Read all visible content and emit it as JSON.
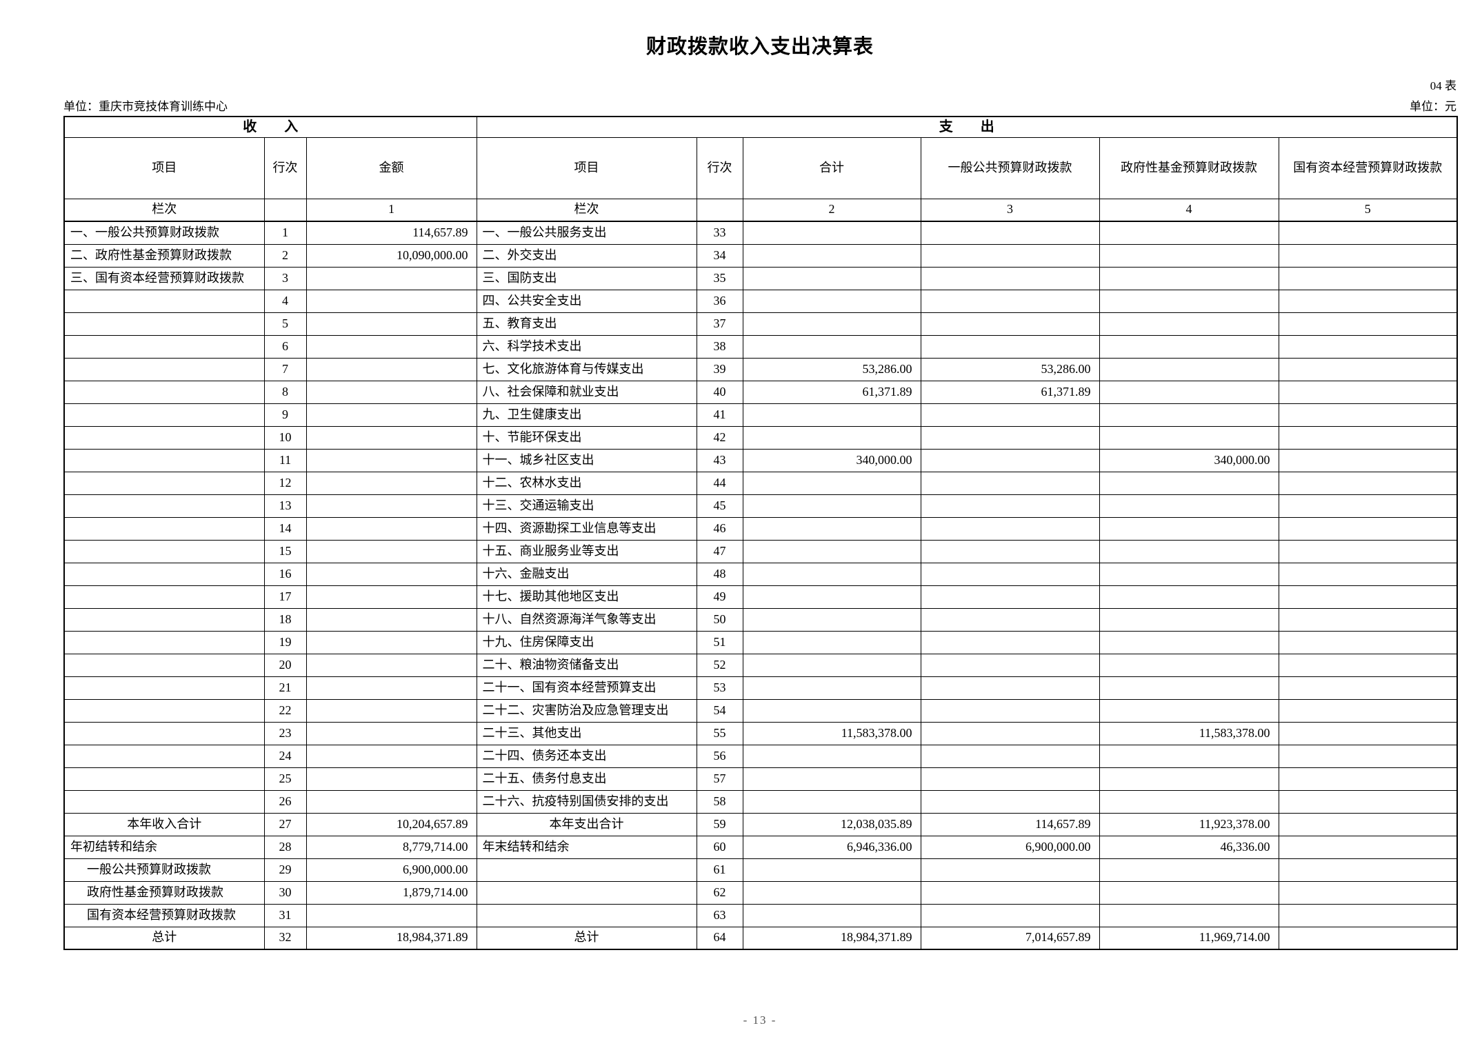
{
  "page": {
    "title": "财政拨款收入支出决算表",
    "table_no": "04 表",
    "unit_name": "单位：重庆市竞技体育训练中心",
    "unit_yuan": "单位：元",
    "page_number": "- 13 -"
  },
  "table": {
    "income_band": "收　　入",
    "expense_band": "支　　出",
    "headers": {
      "item": "项目",
      "row_no": "行次",
      "amount": "金额",
      "total": "合计",
      "general_budget": "一般公共预算财政拨款",
      "gov_fund": "政府性基金预算财政拨款",
      "state_capital": "国有资本经营预算财政拨款"
    },
    "col_index": {
      "label": "栏次",
      "cols": [
        "1",
        "2",
        "3",
        "4",
        "5"
      ]
    },
    "rows": [
      {
        "income_item": "一、一般公共预算财政拨款",
        "income_row": "1",
        "income_amount": "114,657.89",
        "expense_item": "一、一般公共服务支出",
        "expense_row": "33",
        "expense_total": "",
        "expense_general": "",
        "expense_govfund": "",
        "expense_statecap": ""
      },
      {
        "income_item": "二、政府性基金预算财政拨款",
        "income_row": "2",
        "income_amount": "10,090,000.00",
        "expense_item": "二、外交支出",
        "expense_row": "34",
        "expense_total": "",
        "expense_general": "",
        "expense_govfund": "",
        "expense_statecap": ""
      },
      {
        "income_item": "三、国有资本经营预算财政拨款",
        "income_row": "3",
        "income_amount": "",
        "expense_item": "三、国防支出",
        "expense_row": "35",
        "expense_total": "",
        "expense_general": "",
        "expense_govfund": "",
        "expense_statecap": ""
      },
      {
        "income_item": "",
        "income_row": "4",
        "income_amount": "",
        "expense_item": "四、公共安全支出",
        "expense_row": "36",
        "expense_total": "",
        "expense_general": "",
        "expense_govfund": "",
        "expense_statecap": ""
      },
      {
        "income_item": "",
        "income_row": "5",
        "income_amount": "",
        "expense_item": "五、教育支出",
        "expense_row": "37",
        "expense_total": "",
        "expense_general": "",
        "expense_govfund": "",
        "expense_statecap": ""
      },
      {
        "income_item": "",
        "income_row": "6",
        "income_amount": "",
        "expense_item": "六、科学技术支出",
        "expense_row": "38",
        "expense_total": "",
        "expense_general": "",
        "expense_govfund": "",
        "expense_statecap": ""
      },
      {
        "income_item": "",
        "income_row": "7",
        "income_amount": "",
        "expense_item": "七、文化旅游体育与传媒支出",
        "expense_row": "39",
        "expense_total": "53,286.00",
        "expense_general": "53,286.00",
        "expense_govfund": "",
        "expense_statecap": ""
      },
      {
        "income_item": "",
        "income_row": "8",
        "income_amount": "",
        "expense_item": "八、社会保障和就业支出",
        "expense_row": "40",
        "expense_total": "61,371.89",
        "expense_general": "61,371.89",
        "expense_govfund": "",
        "expense_statecap": ""
      },
      {
        "income_item": "",
        "income_row": "9",
        "income_amount": "",
        "expense_item": "九、卫生健康支出",
        "expense_row": "41",
        "expense_total": "",
        "expense_general": "",
        "expense_govfund": "",
        "expense_statecap": ""
      },
      {
        "income_item": "",
        "income_row": "10",
        "income_amount": "",
        "expense_item": "十、节能环保支出",
        "expense_row": "42",
        "expense_total": "",
        "expense_general": "",
        "expense_govfund": "",
        "expense_statecap": ""
      },
      {
        "income_item": "",
        "income_row": "11",
        "income_amount": "",
        "expense_item": "十一、城乡社区支出",
        "expense_row": "43",
        "expense_total": "340,000.00",
        "expense_general": "",
        "expense_govfund": "340,000.00",
        "expense_statecap": ""
      },
      {
        "income_item": "",
        "income_row": "12",
        "income_amount": "",
        "expense_item": "十二、农林水支出",
        "expense_row": "44",
        "expense_total": "",
        "expense_general": "",
        "expense_govfund": "",
        "expense_statecap": ""
      },
      {
        "income_item": "",
        "income_row": "13",
        "income_amount": "",
        "expense_item": "十三、交通运输支出",
        "expense_row": "45",
        "expense_total": "",
        "expense_general": "",
        "expense_govfund": "",
        "expense_statecap": ""
      },
      {
        "income_item": "",
        "income_row": "14",
        "income_amount": "",
        "expense_item": "十四、资源勘探工业信息等支出",
        "expense_row": "46",
        "expense_total": "",
        "expense_general": "",
        "expense_govfund": "",
        "expense_statecap": ""
      },
      {
        "income_item": "",
        "income_row": "15",
        "income_amount": "",
        "expense_item": "十五、商业服务业等支出",
        "expense_row": "47",
        "expense_total": "",
        "expense_general": "",
        "expense_govfund": "",
        "expense_statecap": ""
      },
      {
        "income_item": "",
        "income_row": "16",
        "income_amount": "",
        "expense_item": "十六、金融支出",
        "expense_row": "48",
        "expense_total": "",
        "expense_general": "",
        "expense_govfund": "",
        "expense_statecap": ""
      },
      {
        "income_item": "",
        "income_row": "17",
        "income_amount": "",
        "expense_item": "十七、援助其他地区支出",
        "expense_row": "49",
        "expense_total": "",
        "expense_general": "",
        "expense_govfund": "",
        "expense_statecap": ""
      },
      {
        "income_item": "",
        "income_row": "18",
        "income_amount": "",
        "expense_item": "十八、自然资源海洋气象等支出",
        "expense_row": "50",
        "expense_total": "",
        "expense_general": "",
        "expense_govfund": "",
        "expense_statecap": ""
      },
      {
        "income_item": "",
        "income_row": "19",
        "income_amount": "",
        "expense_item": "十九、住房保障支出",
        "expense_row": "51",
        "expense_total": "",
        "expense_general": "",
        "expense_govfund": "",
        "expense_statecap": ""
      },
      {
        "income_item": "",
        "income_row": "20",
        "income_amount": "",
        "expense_item": "二十、粮油物资储备支出",
        "expense_row": "52",
        "expense_total": "",
        "expense_general": "",
        "expense_govfund": "",
        "expense_statecap": ""
      },
      {
        "income_item": "",
        "income_row": "21",
        "income_amount": "",
        "expense_item": "二十一、国有资本经营预算支出",
        "expense_row": "53",
        "expense_total": "",
        "expense_general": "",
        "expense_govfund": "",
        "expense_statecap": ""
      },
      {
        "income_item": "",
        "income_row": "22",
        "income_amount": "",
        "expense_item": "二十二、灾害防治及应急管理支出",
        "expense_row": "54",
        "expense_total": "",
        "expense_general": "",
        "expense_govfund": "",
        "expense_statecap": ""
      },
      {
        "income_item": "",
        "income_row": "23",
        "income_amount": "",
        "expense_item": "二十三、其他支出",
        "expense_row": "55",
        "expense_total": "11,583,378.00",
        "expense_general": "",
        "expense_govfund": "11,583,378.00",
        "expense_statecap": ""
      },
      {
        "income_item": "",
        "income_row": "24",
        "income_amount": "",
        "expense_item": "二十四、债务还本支出",
        "expense_row": "56",
        "expense_total": "",
        "expense_general": "",
        "expense_govfund": "",
        "expense_statecap": ""
      },
      {
        "income_item": "",
        "income_row": "25",
        "income_amount": "",
        "expense_item": "二十五、债务付息支出",
        "expense_row": "57",
        "expense_total": "",
        "expense_general": "",
        "expense_govfund": "",
        "expense_statecap": ""
      },
      {
        "income_item": "",
        "income_row": "26",
        "income_amount": "",
        "expense_item": "二十六、抗疫特别国债安排的支出",
        "expense_row": "58",
        "expense_total": "",
        "expense_general": "",
        "expense_govfund": "",
        "expense_statecap": ""
      },
      {
        "income_item": "本年收入合计",
        "income_align": "center",
        "income_row": "27",
        "income_amount": "10,204,657.89",
        "expense_item": "本年支出合计",
        "expense_align": "center",
        "expense_row": "59",
        "expense_total": "12,038,035.89",
        "expense_general": "114,657.89",
        "expense_govfund": "11,923,378.00",
        "expense_statecap": ""
      },
      {
        "income_item": "年初结转和结余",
        "income_row": "28",
        "income_amount": "8,779,714.00",
        "expense_item": "年末结转和结余",
        "expense_row": "60",
        "expense_total": "6,946,336.00",
        "expense_general": "6,900,000.00",
        "expense_govfund": "46,336.00",
        "expense_statecap": ""
      },
      {
        "income_item": "一般公共预算财政拨款",
        "income_align": "indent",
        "income_row": "29",
        "income_amount": "6,900,000.00",
        "expense_item": "",
        "expense_row": "61",
        "expense_total": "",
        "expense_general": "",
        "expense_govfund": "",
        "expense_statecap": ""
      },
      {
        "income_item": "政府性基金预算财政拨款",
        "income_align": "indent",
        "income_row": "30",
        "income_amount": "1,879,714.00",
        "expense_item": "",
        "expense_row": "62",
        "expense_total": "",
        "expense_general": "",
        "expense_govfund": "",
        "expense_statecap": ""
      },
      {
        "income_item": "国有资本经营预算财政拨款",
        "income_align": "indent",
        "income_row": "31",
        "income_amount": "",
        "expense_item": "",
        "expense_row": "63",
        "expense_total": "",
        "expense_general": "",
        "expense_govfund": "",
        "expense_statecap": ""
      },
      {
        "income_item": "总计",
        "income_align": "center",
        "income_row": "32",
        "income_amount": "18,984,371.89",
        "expense_item": "总计",
        "expense_align": "center",
        "expense_row": "64",
        "expense_total": "18,984,371.89",
        "expense_general": "7,014,657.89",
        "expense_govfund": "11,969,714.00",
        "expense_statecap": ""
      }
    ]
  }
}
